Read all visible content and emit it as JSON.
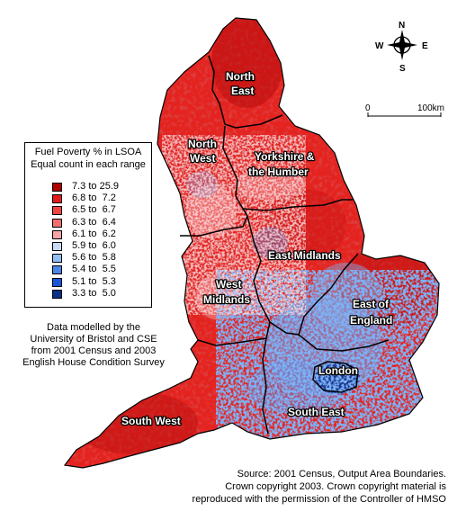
{
  "legend": {
    "title_line1": "Fuel Poverty % in LSOA",
    "title_line2": "Equal count in each range",
    "items": [
      {
        "range": "7.3 to 25.9",
        "color": "#b00000"
      },
      {
        "range": "6.8 to  7.2",
        "color": "#e31a1c"
      },
      {
        "range": "6.5 to  6.7",
        "color": "#f0453f"
      },
      {
        "range": "6.3 to  6.4",
        "color": "#f46d6d"
      },
      {
        "range": "6.1 to  6.2",
        "color": "#f9a5a5"
      },
      {
        "range": "5.9 to  6.0",
        "color": "#c9daf8"
      },
      {
        "range": "5.6 to  5.8",
        "color": "#8fbff5"
      },
      {
        "range": "5.4 to  5.5",
        "color": "#4a86e8"
      },
      {
        "range": "5.1 to  5.3",
        "color": "#1a56db"
      },
      {
        "range": "3.3 to  5.0",
        "color": "#0b2f8a"
      }
    ]
  },
  "note": {
    "line1": "Data modelled by the",
    "line2": "University of Bristol and CSE",
    "line3": "from 2001 Census and 2003",
    "line4": "English House Condition Survey"
  },
  "source": {
    "line1": "Source: 2001 Census, Output Area Boundaries.",
    "line2": "Crown copyright 2003. Crown copyright material is",
    "line3": "reproduced with the permission of the Controller of HMSO"
  },
  "compass": {
    "n": "N",
    "s": "S",
    "e": "E",
    "w": "W"
  },
  "scale": {
    "start": "0",
    "end": "100km"
  },
  "regions": {
    "north_east": [
      "North",
      "East"
    ],
    "north_west": [
      "North",
      "West"
    ],
    "yorkshire": [
      "Yorkshire &",
      "the Humber"
    ],
    "east_midlands": [
      "East Midlands"
    ],
    "west_midlands": [
      "West",
      "Midlands"
    ],
    "east_of_england": [
      "East of",
      "England"
    ],
    "london": [
      "London"
    ],
    "south_east": [
      "South East"
    ],
    "south_west": [
      "South West"
    ]
  }
}
